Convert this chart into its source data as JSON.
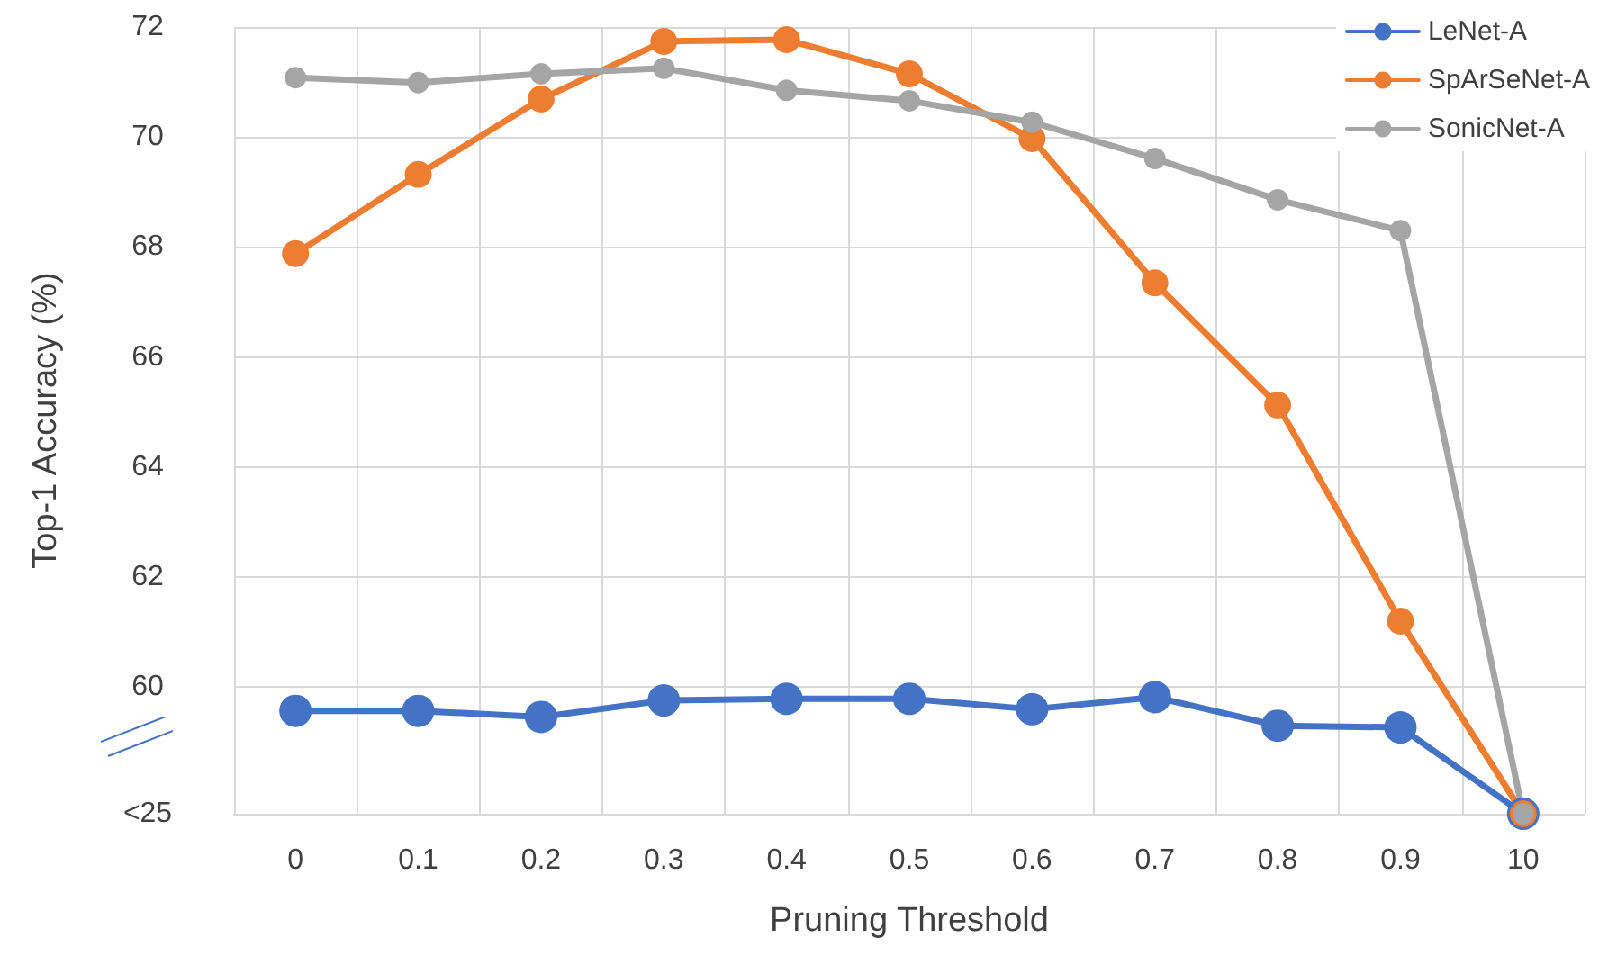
{
  "chart_data": {
    "type": "line",
    "xlabel": "Pruning Threshold",
    "ylabel": "Top-1 Accuracy (%)",
    "categories": [
      "0",
      "0.1",
      "0.2",
      "0.3",
      "0.4",
      "0.5",
      "0.6",
      "0.7",
      "0.8",
      "0.9",
      "10"
    ],
    "series": [
      {
        "name": "LeNet-A",
        "color": "#4472c4",
        "values": [
          59.57,
          59.57,
          59.46,
          59.76,
          59.79,
          59.79,
          59.6,
          59.82,
          59.3,
          59.27,
          57.7
        ]
      },
      {
        "name": "SpArSeNet-A",
        "color": "#ed7d31",
        "values": [
          67.88,
          69.32,
          70.69,
          71.74,
          71.77,
          71.15,
          69.97,
          67.35,
          65.13,
          61.2,
          57.7
        ]
      },
      {
        "name": "SonicNet-A",
        "color": "#a5a5a5",
        "values": [
          71.08,
          70.99,
          71.15,
          71.25,
          70.85,
          70.66,
          70.27,
          69.61,
          68.86,
          68.3,
          57.7
        ]
      }
    ],
    "ylim": [
      57.7,
      72
    ],
    "yticks": [
      {
        "value": 57.7,
        "label": "<25"
      },
      60,
      62,
      64,
      66,
      68,
      70,
      72
    ],
    "grid": true,
    "legend": "top right",
    "marker": "circle",
    "line_style": "solid"
  }
}
